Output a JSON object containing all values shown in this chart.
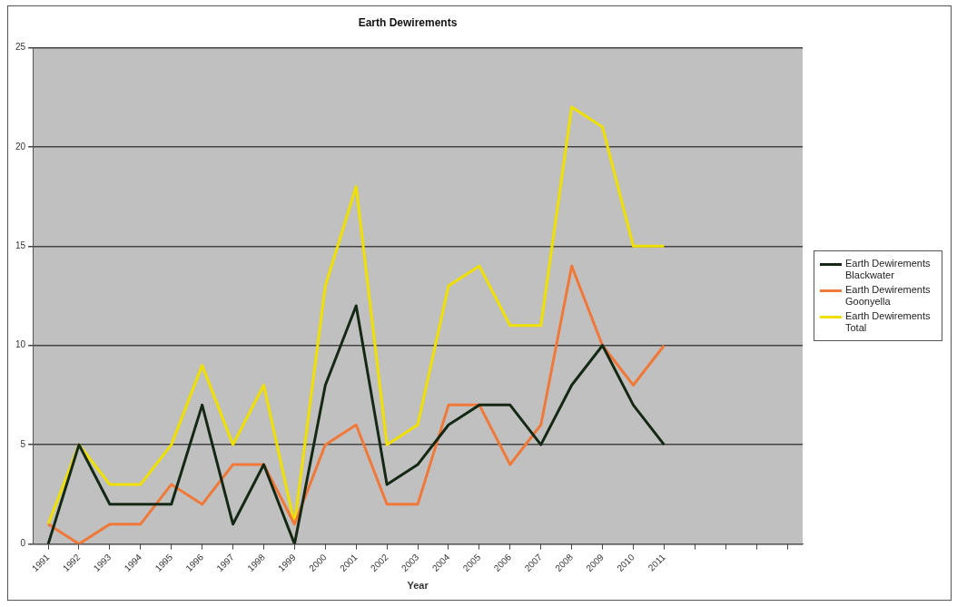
{
  "chart_data": {
    "type": "line",
    "title": "Earth Dewirements",
    "xlabel": "Year",
    "categories": [
      "1991",
      "1992",
      "1993",
      "1994",
      "1995",
      "1996",
      "1997",
      "1998",
      "1999",
      "2000",
      "2001",
      "2002",
      "2003",
      "2004",
      "2005",
      "2006",
      "2007",
      "2008",
      "2009",
      "2010",
      "2011",
      null,
      null,
      null,
      null
    ],
    "series": [
      {
        "name": "Earth Dewirements Blackwater",
        "color": "#142814",
        "values": [
          0,
          5,
          2,
          2,
          2,
          7,
          1,
          4,
          0,
          8,
          12,
          3,
          4,
          6,
          7,
          7,
          5,
          8,
          10,
          7,
          5,
          null,
          null,
          null,
          null
        ]
      },
      {
        "name": "Earth Dewirements Goonyella",
        "color": "#f07838",
        "values": [
          1,
          0,
          1,
          1,
          3,
          2,
          4,
          4,
          1,
          5,
          6,
          2,
          2,
          7,
          7,
          4,
          6,
          14,
          10,
          8,
          10,
          null,
          null,
          null,
          null
        ]
      },
      {
        "name": "Earth Dewirements Total",
        "color": "#f0e000",
        "values": [
          1,
          5,
          3,
          3,
          5,
          9,
          5,
          8,
          1,
          13,
          18,
          5,
          6,
          13,
          14,
          11,
          11,
          22,
          21,
          15,
          15,
          null,
          null,
          null,
          null
        ]
      }
    ],
    "ylim": [
      0,
      25
    ],
    "yticks": [
      0,
      5,
      10,
      15,
      20,
      25
    ],
    "grid": "y",
    "legend": "right",
    "marker": "none",
    "line_style": "solid"
  }
}
